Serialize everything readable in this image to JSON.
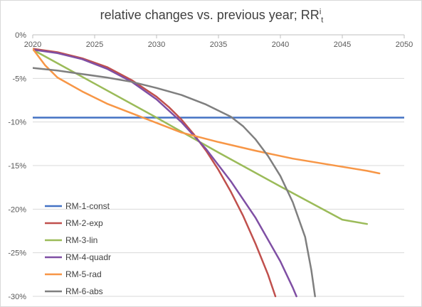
{
  "chart_data": {
    "type": "line",
    "title": {
      "main": "relative changes vs. previous year; RR",
      "sup": "i",
      "sub": "t"
    },
    "xlabel": "",
    "ylabel": "",
    "xlim": [
      2020,
      2050
    ],
    "ylim": [
      -30,
      0
    ],
    "x_ticks": [
      2020,
      2025,
      2030,
      2035,
      2040,
      2045,
      2050
    ],
    "y_ticks": [
      0,
      -5,
      -10,
      -15,
      -20,
      -25,
      -30
    ],
    "y_tick_format": "percent",
    "grid": {
      "horizontal": true,
      "vertical": false
    },
    "legend_position": "bottom-left",
    "series": [
      {
        "name": "RM-1-const",
        "color": "#4472C4",
        "points": [
          [
            2020,
            -9.5
          ],
          [
            2050,
            -9.5
          ]
        ]
      },
      {
        "name": "RM-2-exp",
        "color": "#C0504D",
        "points": [
          [
            2020,
            -1.6
          ],
          [
            2022,
            -2.0
          ],
          [
            2024,
            -2.7
          ],
          [
            2026,
            -3.7
          ],
          [
            2028,
            -5.2
          ],
          [
            2030,
            -7.1
          ],
          [
            2031,
            -8.3
          ],
          [
            2032,
            -9.7
          ],
          [
            2033,
            -11.4
          ],
          [
            2034,
            -13.3
          ],
          [
            2035,
            -15.5
          ],
          [
            2036,
            -18.0
          ],
          [
            2037,
            -20.8
          ],
          [
            2038,
            -24.0
          ],
          [
            2039,
            -27.5
          ],
          [
            2039.6,
            -30.0
          ]
        ]
      },
      {
        "name": "RM-3-lin",
        "color": "#9BBB59",
        "points": [
          [
            2020,
            -1.7
          ],
          [
            2025,
            -5.6
          ],
          [
            2030,
            -9.5
          ],
          [
            2035,
            -13.5
          ],
          [
            2040,
            -17.4
          ],
          [
            2045,
            -21.2
          ],
          [
            2047,
            -21.7
          ]
        ]
      },
      {
        "name": "RM-4-quadr",
        "color": "#7F4FA4",
        "points": [
          [
            2020,
            -1.7
          ],
          [
            2022,
            -2.1
          ],
          [
            2024,
            -2.8
          ],
          [
            2026,
            -3.9
          ],
          [
            2028,
            -5.4
          ],
          [
            2030,
            -7.4
          ],
          [
            2032,
            -10.0
          ],
          [
            2034,
            -13.1
          ],
          [
            2036,
            -16.8
          ],
          [
            2038,
            -21.0
          ],
          [
            2040,
            -26.0
          ],
          [
            2041,
            -29.0
          ],
          [
            2041.3,
            -30.0
          ]
        ]
      },
      {
        "name": "RM-5-rad",
        "color": "#F79646",
        "points": [
          [
            2020,
            -1.6
          ],
          [
            2021,
            -3.5
          ],
          [
            2022,
            -4.9
          ],
          [
            2024,
            -6.5
          ],
          [
            2026,
            -7.9
          ],
          [
            2028,
            -9.0
          ],
          [
            2030,
            -10.1
          ],
          [
            2032,
            -11.2
          ],
          [
            2035,
            -12.3
          ],
          [
            2038,
            -13.3
          ],
          [
            2041,
            -14.2
          ],
          [
            2044,
            -14.9
          ],
          [
            2047,
            -15.6
          ],
          [
            2048,
            -15.9
          ]
        ]
      },
      {
        "name": "RM-6-abs",
        "color": "#7F7F7F",
        "points": [
          [
            2020,
            -3.8
          ],
          [
            2022,
            -4.1
          ],
          [
            2024,
            -4.5
          ],
          [
            2026,
            -4.9
          ],
          [
            2028,
            -5.4
          ],
          [
            2030,
            -6.1
          ],
          [
            2032,
            -6.9
          ],
          [
            2034,
            -8.0
          ],
          [
            2036,
            -9.4
          ],
          [
            2037,
            -10.5
          ],
          [
            2038,
            -12.0
          ],
          [
            2039,
            -13.9
          ],
          [
            2040,
            -16.2
          ],
          [
            2041,
            -19.2
          ],
          [
            2042,
            -23.2
          ],
          [
            2042.5,
            -27.0
          ],
          [
            2042.8,
            -30.0
          ]
        ]
      }
    ]
  }
}
